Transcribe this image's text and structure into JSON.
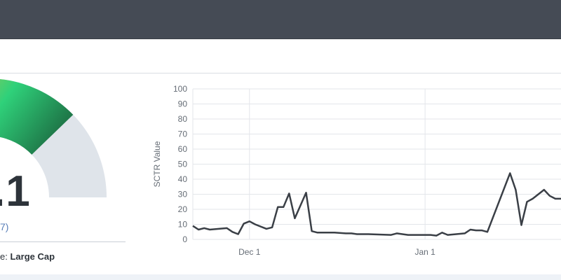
{
  "gauge": {
    "score_text": ".1",
    "score_sub": "7)",
    "cap_label": "e: ",
    "cap_value": "Large Cap",
    "colors": {
      "low": "#e9c33a",
      "mid": "#2fd17a",
      "high": "#1f7a4a",
      "track": "#dfe4ea"
    }
  },
  "chart_data": {
    "type": "line",
    "ylabel": "SCTR Value",
    "ylim": [
      0,
      100
    ],
    "yticks": [
      0,
      10,
      20,
      30,
      40,
      50,
      60,
      70,
      80,
      90,
      100
    ],
    "xticks": [
      {
        "label": "Dec 1",
        "date": "2023-12-01"
      },
      {
        "label": "Jan 1",
        "date": "2024-01-01"
      }
    ],
    "xlim": [
      "2023-11-21",
      "2024-01-25"
    ],
    "line_color": "#3a3f46",
    "grid": true,
    "series": [
      {
        "x": [
          "2023-11-21",
          "2023-11-22",
          "2023-11-23",
          "2023-11-24",
          "2023-11-27",
          "2023-11-28",
          "2023-11-29",
          "2023-11-30",
          "2023-12-01",
          "2023-12-02",
          "2023-12-04",
          "2023-12-05",
          "2023-12-06",
          "2023-12-07",
          "2023-12-08",
          "2023-12-09",
          "2023-12-11",
          "2023-12-12",
          "2023-12-13",
          "2023-12-14",
          "2023-12-15",
          "2023-12-16",
          "2023-12-18",
          "2023-12-19",
          "2023-12-20",
          "2023-12-21",
          "2023-12-22",
          "2023-12-26",
          "2023-12-27",
          "2023-12-28",
          "2023-12-29",
          "2024-01-02",
          "2024-01-03",
          "2024-01-04",
          "2024-01-05",
          "2024-01-08",
          "2024-01-09",
          "2024-01-10",
          "2024-01-11",
          "2024-01-12",
          "2024-01-16",
          "2024-01-17",
          "2024-01-18",
          "2024-01-19",
          "2024-01-20",
          "2024-01-22",
          "2024-01-23",
          "2024-01-24",
          "2024-01-25"
        ],
        "y": [
          9,
          6.5,
          7.5,
          6.5,
          7.5,
          5,
          3.5,
          10.5,
          12,
          10,
          7,
          8,
          21.5,
          21.5,
          30.5,
          14,
          31,
          5.5,
          4.5,
          4.5,
          4.5,
          4.5,
          4,
          4,
          3.5,
          3.5,
          3.5,
          3,
          4,
          3.5,
          3,
          3,
          2.5,
          4.5,
          3,
          4,
          6.5,
          6,
          6,
          5,
          44,
          33,
          9.5,
          25,
          27,
          33,
          29,
          27,
          27
        ]
      }
    ]
  }
}
